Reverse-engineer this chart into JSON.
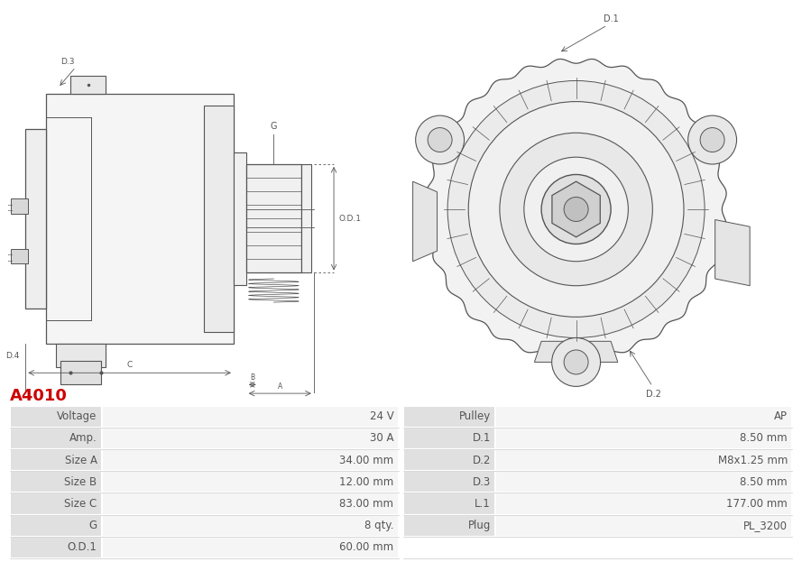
{
  "title": "A4010",
  "title_color": "#cc0000",
  "title_fontsize": 13,
  "table_rows": [
    [
      "Voltage",
      "24 V",
      "Pulley",
      "AP"
    ],
    [
      "Amp.",
      "30 A",
      "D.1",
      "8.50 mm"
    ],
    [
      "Size A",
      "34.00 mm",
      "D.2",
      "M8x1.25 mm"
    ],
    [
      "Size B",
      "12.00 mm",
      "D.3",
      "8.50 mm"
    ],
    [
      "Size C",
      "83.00 mm",
      "L.1",
      "177.00 mm"
    ],
    [
      "G",
      "8 qty.",
      "Plug",
      "PL_3200"
    ],
    [
      "O.D.1",
      "60.00 mm",
      "",
      ""
    ]
  ],
  "bg_color_label": "#e0e0e0",
  "bg_color_value": "#f5f5f5",
  "text_color": "#555555",
  "font_size_table": 8.5,
  "lc": "#555555",
  "lw": 0.8
}
